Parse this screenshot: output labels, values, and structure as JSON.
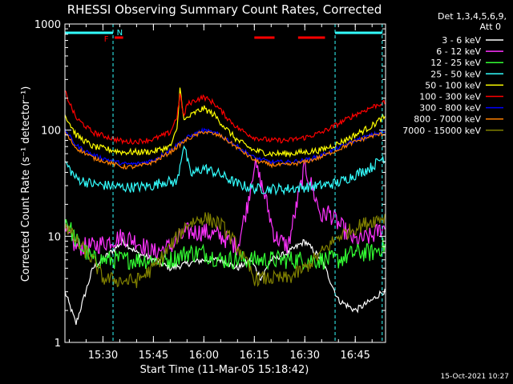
{
  "chart_data": {
    "type": "line",
    "title": "RHESSI Observing Summary Count Rates, Corrected",
    "xlabel": "Start Time (11-Mar-05 15:18:42)",
    "ylabel": "Corrected Count Rate (s⁻¹ detector⁻¹)",
    "y_scale": "log",
    "ylim": [
      1,
      1000
    ],
    "xlim": [
      "15:18:42",
      "16:54:00"
    ],
    "x_ticks": [
      "15:30",
      "15:45",
      "16:00",
      "16:15",
      "16:30",
      "16:45"
    ],
    "y_ticks": [
      "1",
      "10",
      "100",
      "1000"
    ],
    "legend_header": [
      "Det 1,3,4,5,6,9,",
      "Att 0"
    ],
    "legend_position": "right",
    "footer": "15-Oct-2021 10:27",
    "flag_labels": [
      "F",
      "N"
    ],
    "series": [
      {
        "name": "3 - 6 keV",
        "color": "#ffffff",
        "x": [
          "15:18:42",
          "15:22",
          "15:27",
          "15:36",
          "15:40",
          "15:45",
          "15:50",
          "15:55",
          "16:00",
          "16:05",
          "16:10",
          "16:14",
          "16:17",
          "16:20",
          "16:25",
          "16:30",
          "16:35",
          "16:40",
          "16:45",
          "16:50",
          "16:53"
        ],
        "y": [
          3,
          1.5,
          5,
          9,
          7,
          6,
          5,
          5.5,
          6,
          6,
          5,
          6,
          4,
          6,
          7,
          9,
          6,
          2.5,
          2,
          2.5,
          3
        ]
      },
      {
        "name": "6 - 12 keV",
        "color": "#ff33ff",
        "x": [
          "15:18:42",
          "15:22",
          "15:27",
          "15:36",
          "15:40",
          "15:45",
          "15:50",
          "15:55",
          "16:00",
          "16:05",
          "16:10",
          "16:13",
          "16:15",
          "16:18",
          "16:21",
          "16:25",
          "16:30",
          "16:32",
          "16:35",
          "16:37",
          "16:40",
          "16:45",
          "16:50",
          "16:53"
        ],
        "y": [
          11,
          8,
          8,
          10,
          9,
          7,
          8,
          11,
          11,
          10,
          8,
          20,
          50,
          25,
          10,
          8,
          45,
          30,
          15,
          17,
          13,
          9,
          10,
          12
        ]
      },
      {
        "name": "12 - 25 keV",
        "color": "#33ff33",
        "x": [
          "15:18:42",
          "15:22",
          "15:27",
          "15:36",
          "15:40",
          "15:45",
          "15:50",
          "15:55",
          "16:00",
          "16:05",
          "16:10",
          "16:15",
          "16:20",
          "16:25",
          "16:30",
          "16:35",
          "16:40",
          "16:45",
          "16:50",
          "16:53"
        ],
        "y": [
          15,
          9,
          6,
          6,
          6,
          6,
          6,
          7,
          7,
          6,
          6,
          6,
          6,
          6,
          6,
          6,
          6,
          7,
          7,
          8
        ]
      },
      {
        "name": "25 - 50 keV",
        "color": "#33ffff",
        "x": [
          "15:18:42",
          "15:22",
          "15:27",
          "15:36",
          "15:40",
          "15:45",
          "15:48",
          "15:52",
          "15:54",
          "15:56",
          "16:00",
          "16:05",
          "16:10",
          "16:15",
          "16:20",
          "16:25",
          "16:30",
          "16:35",
          "16:40",
          "16:45",
          "16:50",
          "16:53"
        ],
        "y": [
          50,
          35,
          31,
          29,
          29,
          30,
          33,
          32,
          75,
          38,
          44,
          38,
          31,
          28,
          28,
          28,
          29,
          30,
          32,
          38,
          45,
          55
        ]
      },
      {
        "name": "50 - 100 keV",
        "color": "#ffff00",
        "x": [
          "15:18:42",
          "15:22",
          "15:27",
          "15:36",
          "15:40",
          "15:45",
          "15:50",
          "15:52",
          "15:53",
          "15:54",
          "15:55",
          "15:58",
          "16:00",
          "16:03",
          "16:07",
          "16:10",
          "16:15",
          "16:20",
          "16:25",
          "16:30",
          "16:35",
          "16:40",
          "16:45",
          "16:50",
          "16:53"
        ],
        "y": [
          140,
          90,
          70,
          62,
          62,
          63,
          70,
          100,
          270,
          120,
          130,
          150,
          160,
          140,
          100,
          80,
          64,
          60,
          60,
          62,
          65,
          75,
          90,
          110,
          130
        ]
      },
      {
        "name": "100 - 300 keV",
        "color": "#ff0000",
        "x": [
          "15:18:42",
          "15:22",
          "15:27",
          "15:36",
          "15:40",
          "15:45",
          "15:50",
          "15:52",
          "15:53",
          "15:54",
          "15:55",
          "15:58",
          "16:00",
          "16:03",
          "16:07",
          "16:10",
          "16:15",
          "16:20",
          "16:25",
          "16:30",
          "16:35",
          "16:40",
          "16:45",
          "16:50",
          "16:53"
        ],
        "y": [
          230,
          130,
          95,
          78,
          78,
          82,
          95,
          135,
          220,
          130,
          175,
          195,
          205,
          180,
          130,
          105,
          85,
          80,
          80,
          85,
          95,
          115,
          140,
          165,
          180
        ]
      },
      {
        "name": "300 - 800 keV",
        "color": "#0000ff",
        "x": [
          "15:18:42",
          "15:22",
          "15:27",
          "15:36",
          "15:40",
          "15:45",
          "15:50",
          "15:55",
          "16:00",
          "16:05",
          "16:10",
          "16:15",
          "16:20",
          "16:25",
          "16:30",
          "16:35",
          "16:40",
          "16:45",
          "16:50",
          "16:53"
        ],
        "y": [
          100,
          72,
          58,
          48,
          48,
          52,
          65,
          85,
          100,
          90,
          70,
          55,
          50,
          50,
          52,
          58,
          68,
          80,
          90,
          95
        ]
      },
      {
        "name": "800 - 7000 keV",
        "color": "#ff8000",
        "x": [
          "15:18:42",
          "15:22",
          "15:27",
          "15:36",
          "15:40",
          "15:45",
          "15:50",
          "15:55",
          "16:00",
          "16:05",
          "16:10",
          "16:15",
          "16:20",
          "16:25",
          "16:30",
          "16:35",
          "16:40",
          "16:45",
          "16:50",
          "16:53"
        ],
        "y": [
          95,
          68,
          55,
          45,
          45,
          50,
          62,
          82,
          97,
          88,
          68,
          52,
          47,
          47,
          50,
          56,
          66,
          78,
          88,
          92
        ]
      },
      {
        "name": "7000 - 15000 keV",
        "color": "#808000",
        "x": [
          "15:18:42",
          "15:22",
          "15:27",
          "15:30",
          "15:36",
          "15:40",
          "15:45",
          "15:50",
          "15:55",
          "16:00",
          "16:05",
          "16:10",
          "16:15",
          "16:20",
          "16:25",
          "16:30",
          "16:35",
          "16:40",
          "16:45",
          "16:50",
          "16:53"
        ],
        "y": [
          13,
          9,
          6,
          4,
          3.8,
          3.8,
          5,
          8,
          13,
          15,
          13,
          8,
          4,
          4,
          4,
          5,
          7,
          10,
          12,
          14,
          15
        ]
      }
    ]
  }
}
